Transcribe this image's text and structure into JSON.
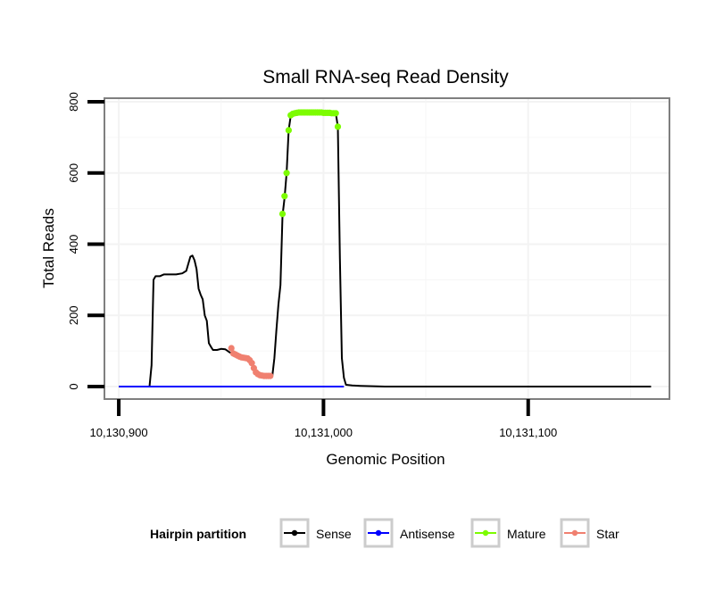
{
  "chart_data": {
    "type": "line",
    "title": "Small RNA-seq Read Density",
    "xlabel": "Genomic Position",
    "ylabel": "Total Reads",
    "xlim": [
      10130893,
      10131169
    ],
    "ylim": [
      -35,
      810
    ],
    "x_ticks": [
      10130900,
      10131000,
      10131100
    ],
    "x_tick_labels": [
      "10,130,900",
      "10,131,000",
      "10,131,100"
    ],
    "y_ticks": [
      0,
      200,
      400,
      600,
      800
    ],
    "y_tick_labels": [
      "0",
      "200",
      "400",
      "600",
      "800"
    ],
    "grid": true,
    "legend": {
      "title": "Hairpin partition",
      "position": "bottom",
      "entries": [
        {
          "name": "Sense",
          "color": "#000000"
        },
        {
          "name": "Antisense",
          "color": "#0000ff"
        },
        {
          "name": "Mature",
          "color": "#7cfc00"
        },
        {
          "name": "Star",
          "color": "#f08070"
        }
      ]
    },
    "series": [
      {
        "name": "Sense",
        "color": "#000000",
        "style": "line",
        "points": [
          [
            10130900,
            0
          ],
          [
            10130915,
            0
          ],
          [
            10130916,
            60
          ],
          [
            10130917,
            300
          ],
          [
            10130918,
            310
          ],
          [
            10130920,
            310
          ],
          [
            10130922,
            315
          ],
          [
            10130925,
            315
          ],
          [
            10130928,
            315
          ],
          [
            10130931,
            318
          ],
          [
            10130933,
            325
          ],
          [
            10130934,
            345
          ],
          [
            10130935,
            365
          ],
          [
            10130936,
            368
          ],
          [
            10130937,
            355
          ],
          [
            10130938,
            330
          ],
          [
            10130939,
            275
          ],
          [
            10130940,
            258
          ],
          [
            10130941,
            245
          ],
          [
            10130942,
            200
          ],
          [
            10130943,
            185
          ],
          [
            10130944,
            122
          ],
          [
            10130945,
            112
          ],
          [
            10130946,
            103
          ],
          [
            10130948,
            103
          ],
          [
            10130950,
            106
          ],
          [
            10130952,
            105
          ],
          [
            10130954,
            97
          ],
          [
            10130956,
            90
          ],
          [
            10130958,
            86
          ],
          [
            10130960,
            84
          ],
          [
            10130962,
            80
          ],
          [
            10130964,
            70
          ],
          [
            10130965,
            62
          ],
          [
            10130966,
            44
          ],
          [
            10130968,
            36
          ],
          [
            10130970,
            32
          ],
          [
            10130972,
            30
          ],
          [
            10130974,
            30
          ],
          [
            10130975,
            30
          ],
          [
            10130976,
            80
          ],
          [
            10130977,
            160
          ],
          [
            10130978,
            230
          ],
          [
            10130979,
            285
          ],
          [
            10130980,
            480
          ],
          [
            10130981,
            530
          ],
          [
            10130982,
            600
          ],
          [
            10130983,
            720
          ],
          [
            10130984,
            760
          ],
          [
            10130986,
            765
          ],
          [
            10130990,
            768
          ],
          [
            10131000,
            768
          ],
          [
            10131006,
            768
          ],
          [
            10131007,
            730
          ],
          [
            10131008,
            360
          ],
          [
            10131009,
            80
          ],
          [
            10131010,
            25
          ],
          [
            10131011,
            5
          ],
          [
            10131014,
            3
          ],
          [
            10131018,
            2
          ],
          [
            10131030,
            0
          ],
          [
            10131060,
            0
          ],
          [
            10131100,
            0
          ],
          [
            10131160,
            0
          ]
        ]
      },
      {
        "name": "Antisense",
        "color": "#0000ff",
        "style": "line",
        "points": [
          [
            10130900,
            0
          ],
          [
            10131010,
            0
          ]
        ]
      },
      {
        "name": "Mature",
        "color": "#7cfc00",
        "style": "points",
        "points": [
          [
            10130980,
            485
          ],
          [
            10130981,
            535
          ],
          [
            10130982,
            600
          ],
          [
            10130983,
            720
          ],
          [
            10130984,
            762
          ],
          [
            10130985,
            766
          ],
          [
            10130986,
            768
          ],
          [
            10130987,
            769
          ],
          [
            10130988,
            770
          ],
          [
            10130989,
            770
          ],
          [
            10130990,
            770
          ],
          [
            10130991,
            770
          ],
          [
            10130992,
            770
          ],
          [
            10130993,
            770
          ],
          [
            10130994,
            770
          ],
          [
            10130995,
            770
          ],
          [
            10130996,
            770
          ],
          [
            10130997,
            770
          ],
          [
            10130998,
            770
          ],
          [
            10130999,
            770
          ],
          [
            10131000,
            769
          ],
          [
            10131001,
            769
          ],
          [
            10131002,
            769
          ],
          [
            10131003,
            769
          ],
          [
            10131004,
            768
          ],
          [
            10131005,
            768
          ],
          [
            10131006,
            768
          ],
          [
            10131007,
            730
          ]
        ]
      },
      {
        "name": "Star",
        "color": "#f08070",
        "style": "points",
        "points": [
          [
            10130955,
            108
          ],
          [
            10130956,
            93
          ],
          [
            10130957,
            90
          ],
          [
            10130958,
            87
          ],
          [
            10130959,
            84
          ],
          [
            10130960,
            82
          ],
          [
            10130961,
            81
          ],
          [
            10130962,
            80
          ],
          [
            10130963,
            79
          ],
          [
            10130964,
            74
          ],
          [
            10130965,
            66
          ],
          [
            10130966,
            52
          ],
          [
            10130967,
            40
          ],
          [
            10130968,
            35
          ],
          [
            10130969,
            32
          ],
          [
            10130970,
            31
          ],
          [
            10130971,
            30
          ],
          [
            10130972,
            30
          ],
          [
            10130973,
            30
          ],
          [
            10130974,
            30
          ]
        ]
      }
    ]
  }
}
